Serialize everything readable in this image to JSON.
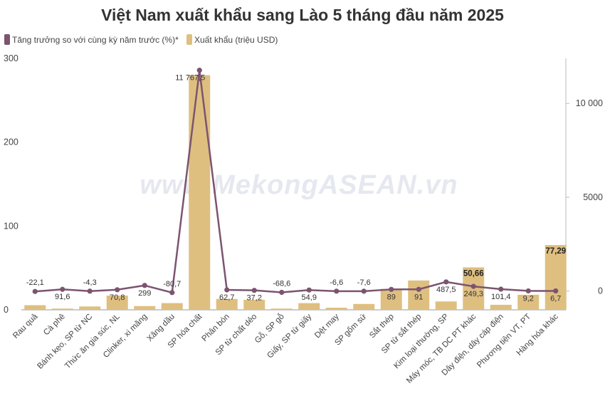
{
  "chart_data": {
    "type": "bar",
    "title": "Việt Nam xuất khẩu sang Lào 5 tháng đầu năm 2025",
    "watermark": "www.MekongASEAN.vn",
    "legend": [
      {
        "name": "Tăng trưởng so với cùng kỳ năm trước (%)*",
        "color": "#7b5470",
        "kind": "line"
      },
      {
        "name": "Xuất khẩu (triệu USD)",
        "color": "#dfbf80",
        "kind": "bar"
      }
    ],
    "categories": [
      "Rau quả",
      "Cà phê",
      "Bánh kẹo, SP từ NC",
      "Thức ăn gia súc, NL",
      "Clinker, xi măng",
      "Xăng dầu",
      "SP hóa chất",
      "Phân bón",
      "SP từ chất dẻo",
      "Gỗ, SP gỗ",
      "Giấy, SP từ giấy",
      "Dệt may",
      "SP gốm sứ",
      "Sắt thép",
      "SP từ sắt thép",
      "Kim loại thường, SP",
      "Máy móc, TB DC PT khác",
      "Dây điện, dây cáp điện",
      "Phương tiện VT, PT",
      "Hàng hóa khác"
    ],
    "series": [
      {
        "name": "Xuất khẩu (triệu USD)",
        "type": "bar",
        "axis": "left",
        "values": [
          5.5,
          1.5,
          4,
          17,
          4.5,
          8,
          280,
          13,
          12,
          1.5,
          8,
          2.5,
          7,
          25,
          35,
          10,
          50.66,
          6,
          18,
          77.29
        ],
        "labels": [
          "",
          "",
          "",
          "",
          "",
          "",
          "",
          "",
          "",
          "",
          "",
          "",
          "",
          "",
          "",
          "",
          "50,66",
          "",
          "",
          "77,29"
        ]
      },
      {
        "name": "Tăng trưởng so với cùng kỳ năm trước (%)*",
        "type": "line",
        "axis": "right",
        "values": [
          -22.1,
          91.6,
          -4.3,
          70.8,
          299,
          -80.7,
          11767.5,
          62.7,
          37.2,
          -68.6,
          54.9,
          -6.6,
          -7.6,
          89,
          91,
          487.5,
          249.3,
          101.4,
          9.2,
          6.7
        ],
        "labels": [
          "-22,1",
          "91,6",
          "-4,3",
          "70,8",
          "299",
          "-80,7",
          "11 767,5",
          "62,7",
          "37,2",
          "-68,6",
          "54,9",
          "-6,6",
          "-7,6",
          "89",
          "91",
          "487,5",
          "249,3",
          "101,4",
          "9,2",
          "6,7"
        ]
      }
    ],
    "y_left": {
      "min": 0,
      "max": 300,
      "ticks": [
        0,
        100,
        200,
        300
      ],
      "tick_labels": [
        "0",
        "100",
        "200",
        "300"
      ]
    },
    "y_right": {
      "min": -1000,
      "max": 12400,
      "ticks": [
        0,
        5000,
        10000
      ],
      "tick_labels": [
        "0",
        "5000",
        "10 000"
      ]
    },
    "legend_position": "top-left",
    "grid": false
  }
}
